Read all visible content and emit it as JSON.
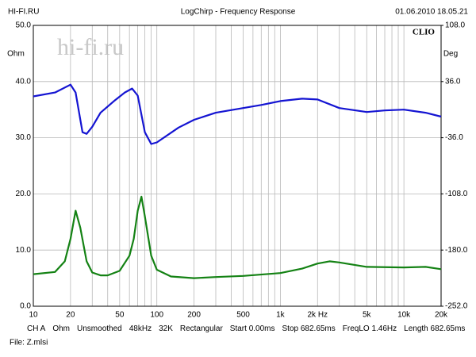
{
  "chart_data": {
    "type": "line",
    "header_left": "HI-FI.RU",
    "title": "LogChirp - Frequency Response",
    "header_right": "01.06.2010 18.05.21",
    "brand": "CLIO",
    "watermark": "hi-fi.ru",
    "ylabel": "Ohm",
    "y2label": "Deg",
    "xscale": "log",
    "grid": true,
    "xlim": [
      10,
      20000
    ],
    "ylim": [
      0,
      50
    ],
    "y2lim": [
      -252,
      108
    ],
    "xticks": [
      10,
      20,
      50,
      100,
      200,
      500,
      {
        "value": 1000,
        "label": "1k"
      },
      {
        "value": 2000,
        "label": "2k Hz"
      },
      {
        "value": 5000,
        "label": "5k"
      },
      {
        "value": 10000,
        "label": "10k"
      },
      {
        "value": 20000,
        "label": "20k"
      }
    ],
    "xgrid_minor": [
      30,
      40,
      60,
      70,
      80,
      90,
      300,
      400,
      600,
      700,
      800,
      900,
      3000,
      4000,
      6000,
      7000,
      8000,
      9000
    ],
    "yticks": [
      {
        "value": 0,
        "label": "0.0"
      },
      {
        "value": 10,
        "label": "10.0"
      },
      {
        "value": 20,
        "label": "20.0"
      },
      {
        "value": 30,
        "label": "30.0"
      },
      {
        "value": 40,
        "label": "40.0"
      },
      {
        "value": 50,
        "label": "50.0"
      }
    ],
    "y2ticks": [
      {
        "value": -252,
        "label": "-252.0"
      },
      {
        "value": -180,
        "label": "-180.0"
      },
      {
        "value": -108,
        "label": "-108.0"
      },
      {
        "value": -36,
        "label": "-36.0"
      },
      {
        "value": 36,
        "label": "36.0"
      },
      {
        "value": 108,
        "label": "108.0"
      }
    ],
    "series": [
      {
        "color": "#1414d2",
        "axis": "y2",
        "x": [
          10,
          15,
          20,
          22,
          25,
          27,
          30,
          35,
          45,
          55,
          63,
          70,
          80,
          90,
          100,
          150,
          200,
          300,
          500,
          700,
          1000,
          1500,
          2000,
          3000,
          5000,
          7000,
          10000,
          15000,
          20000
        ],
        "values": [
          17,
          22,
          32,
          22,
          -29,
          -31,
          -22,
          -4,
          11,
          22,
          27,
          18,
          -29,
          -44,
          -42,
          -23,
          -13,
          -4,
          2,
          6,
          11,
          14,
          13,
          2,
          -3,
          -1,
          0,
          -4,
          -9
        ]
      },
      {
        "color": "#148214",
        "x": [
          10,
          15,
          18,
          20,
          22,
          24,
          27,
          30,
          35,
          40,
          50,
          60,
          65,
          70,
          75,
          80,
          90,
          100,
          130,
          200,
          300,
          500,
          1000,
          1500,
          2000,
          2500,
          3000,
          5000,
          10000,
          15000,
          20000
        ],
        "values": [
          5.7,
          6.1,
          8,
          12,
          17,
          14,
          8,
          6,
          5.5,
          5.5,
          6.3,
          9,
          12,
          17,
          19.5,
          16,
          9,
          6.5,
          5.3,
          5,
          5.2,
          5.4,
          5.9,
          6.7,
          7.6,
          8,
          7.8,
          7,
          6.9,
          7,
          6.6
        ]
      }
    ],
    "footer": [
      "CH A",
      "Ohm",
      "Unsmoothed",
      "48kHz",
      "32K",
      "Rectangular",
      "Start 0.00ms",
      "Stop 682.65ms",
      "FreqLO 1.46Hz",
      "Length 682.65ms"
    ],
    "file": "File: Z.mlsi"
  }
}
